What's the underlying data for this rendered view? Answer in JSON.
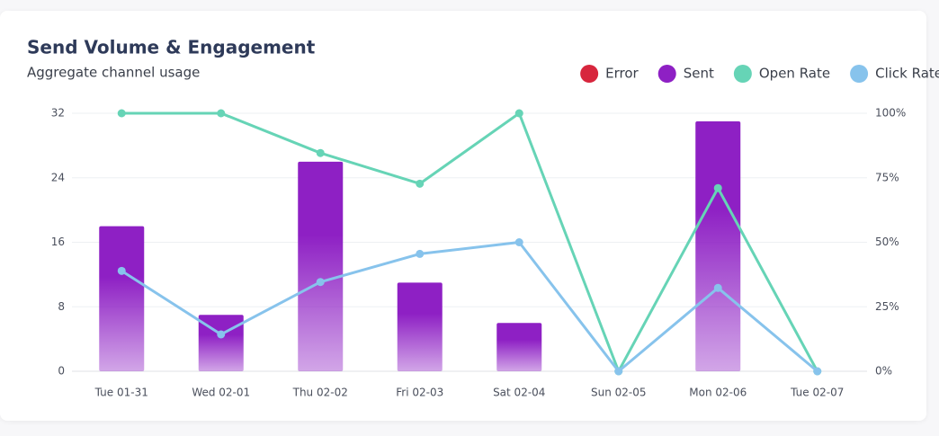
{
  "chart_data": {
    "type": "bar",
    "title": "Send Volume & Engagement",
    "subtitle": "Aggregate channel usage",
    "categories": [
      "Tue 01-31",
      "Wed 02-01",
      "Thu 02-02",
      "Fri 02-03",
      "Sat 02-04",
      "Sun 02-05",
      "Mon 02-06",
      "Tue 02-07"
    ],
    "series": [
      {
        "name": "Error",
        "type": "bar",
        "color": "#d7263d",
        "values": [
          0,
          0,
          0,
          0,
          0,
          0,
          0,
          0
        ]
      },
      {
        "name": "Sent",
        "type": "bar",
        "color": "#8e20c4",
        "values": [
          18,
          7,
          26,
          11,
          6,
          0,
          31,
          0
        ]
      },
      {
        "name": "Open Rate",
        "type": "line",
        "axis": "y2",
        "color": "#66d4b6",
        "values": [
          100,
          100,
          84.6,
          72.7,
          100,
          0,
          71.0,
          0
        ]
      },
      {
        "name": "Click Rate",
        "type": "line",
        "axis": "y2",
        "color": "#87c3ec",
        "values": [
          38.9,
          14.3,
          34.6,
          45.5,
          50,
          0,
          32.3,
          0
        ]
      }
    ],
    "ylim": [
      0,
      32
    ],
    "yticks": [
      0,
      8,
      16,
      24,
      32
    ],
    "y2lim": [
      0,
      100
    ],
    "y2ticks": [
      {
        "value": 0,
        "label": "0%"
      },
      {
        "value": 25,
        "label": "25%"
      },
      {
        "value": 50,
        "label": "50%"
      },
      {
        "value": 75,
        "label": "75%"
      },
      {
        "value": 100,
        "label": "100%"
      }
    ],
    "grid": true,
    "legend": "top-right"
  }
}
